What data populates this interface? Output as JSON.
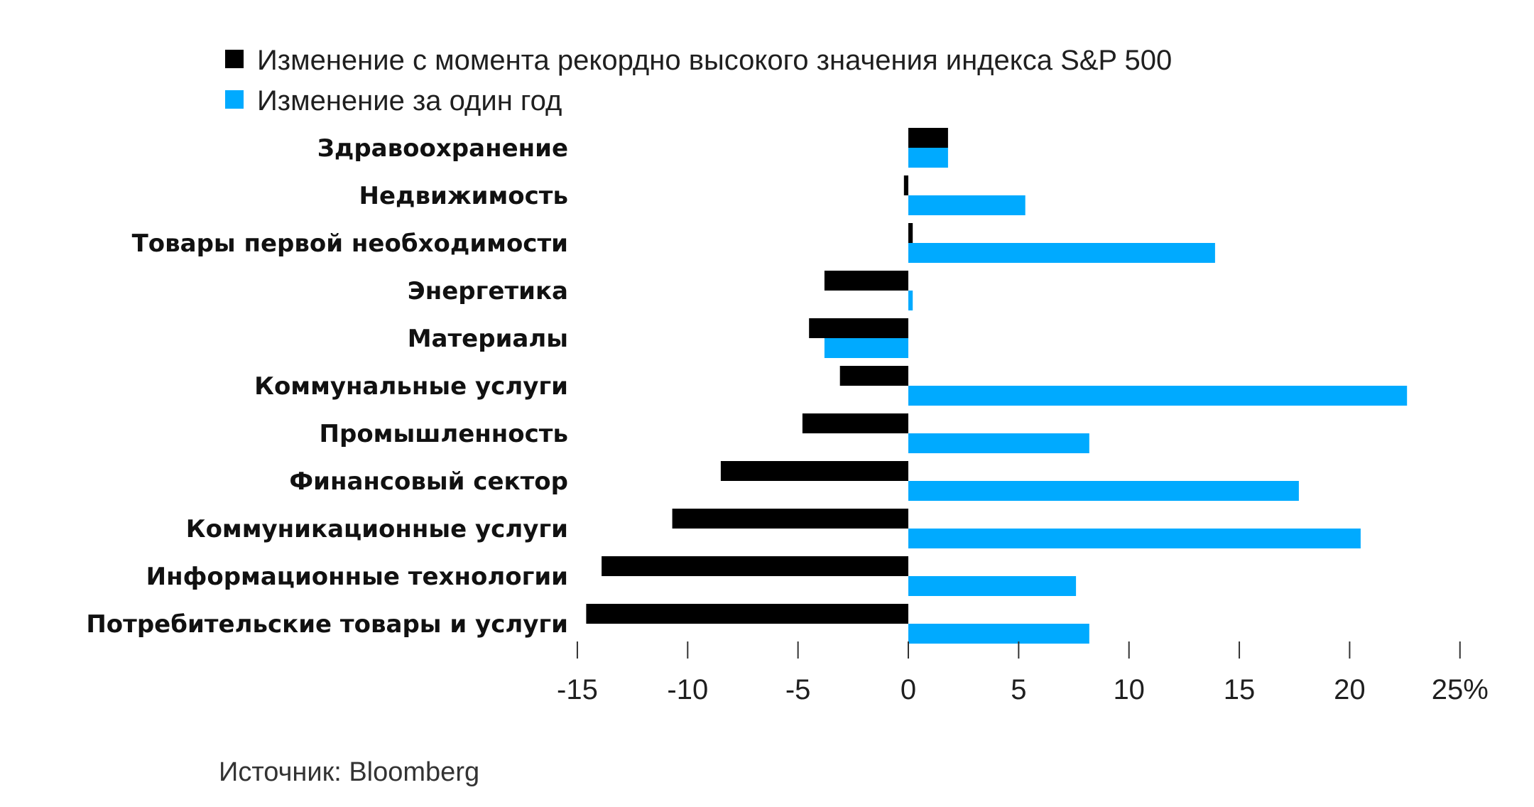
{
  "chart_data": {
    "type": "bar",
    "orientation": "horizontal",
    "categories": [
      "Здравоохранение",
      "Недвижимость",
      "Товары первой необходимости",
      "Энергетика",
      "Материалы",
      "Коммунальные услуги",
      "Промышленность",
      "Финансовый сектор",
      "Коммуникационные услуги",
      "Информационные технологии",
      "Потребительские товары и услуги"
    ],
    "series": [
      {
        "name": "Изменение с момента рекордно высокого значения индекса S&P 500",
        "color": "#000000",
        "values": [
          1.8,
          -0.2,
          0.2,
          -3.8,
          -4.5,
          -3.1,
          -4.8,
          -8.5,
          -10.7,
          -13.9,
          -14.6
        ]
      },
      {
        "name": "Изменение за один год",
        "color": "#00aaff",
        "values": [
          1.8,
          5.3,
          13.9,
          0.2,
          -3.8,
          22.6,
          8.2,
          17.7,
          20.5,
          7.6,
          8.2
        ]
      }
    ],
    "xlim": [
      -15,
      25
    ],
    "xticks": [
      -15,
      -10,
      -5,
      0,
      5,
      10,
      15,
      20,
      25
    ],
    "xtick_labels": [
      "-15",
      "-10",
      "-5",
      "0",
      "5",
      "10",
      "15",
      "20",
      "25%"
    ],
    "legend_position": "top-left"
  },
  "source": "Источник: Bloomberg"
}
